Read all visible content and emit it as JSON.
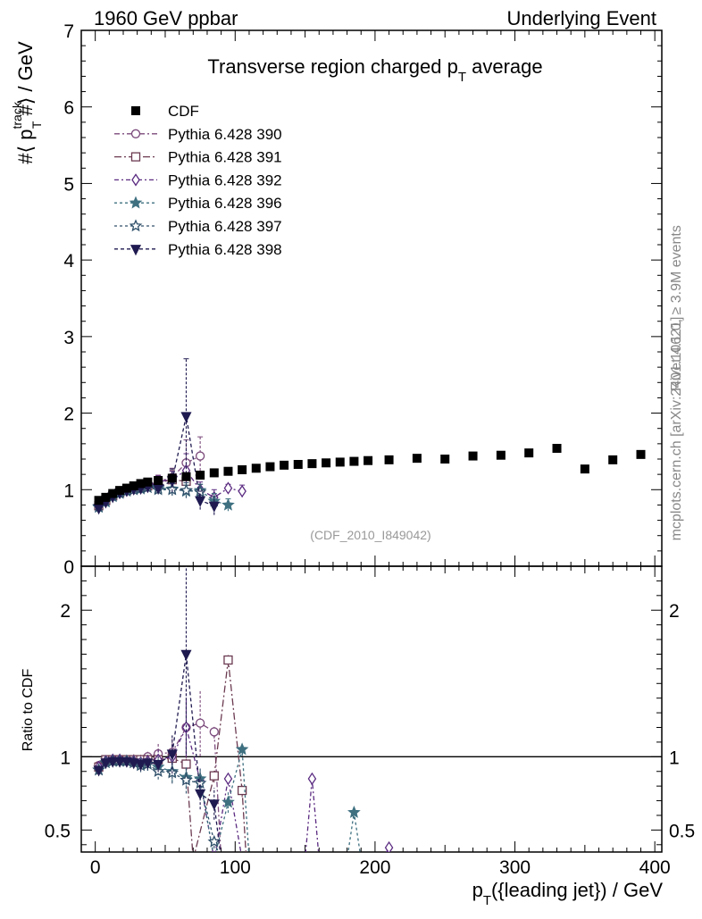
{
  "header": {
    "left": "1960 GeV ppbar",
    "right": "Underlying Event"
  },
  "side_labels": {
    "rivet": "Rivet 4.1.0, ≥ 3.9M events",
    "mcplots": "mcplots.cern.ch [arXiv:2401.10621]"
  },
  "chart_data": {
    "type": "scatter",
    "title_main": "Transverse region charged p",
    "title_sub": "T",
    "title_tail": " average",
    "analysis_label": "(CDF_2010_I849042)",
    "ylabel_parts": {
      "pre": "#⟨ p",
      "sup": "track",
      "sub": "T",
      "post": " #⟩ / GeV"
    },
    "xlabel_parts": {
      "pre": "p",
      "sub": "T",
      "post": "({leading jet}) / GeV"
    },
    "ratio_ylabel": "Ratio to CDF",
    "xlim": [
      -10,
      405
    ],
    "ylim": [
      0,
      7
    ],
    "ratio_ylim": [
      0.35,
      2.3
    ],
    "x_ticks": [
      0,
      100,
      200,
      300,
      400
    ],
    "y_ticks": [
      0,
      1,
      2,
      3,
      4,
      5,
      6,
      7
    ],
    "ratio_ticks": [
      0.5,
      1,
      2
    ],
    "ratio_tick_labels": [
      "0.5",
      "1",
      "2"
    ],
    "legend": [
      "CDF",
      "Pythia 6.428 390",
      "Pythia 6.428 391",
      "Pythia 6.428 392",
      "Pythia 6.428 396",
      "Pythia 6.428 397",
      "Pythia 6.428 398"
    ],
    "data": {
      "name": "CDF",
      "color": "#000000",
      "x": [
        2.5,
        7.5,
        12.5,
        17.5,
        22.5,
        27.5,
        32.5,
        37.5,
        45,
        55,
        65,
        75,
        85,
        95,
        105,
        115,
        125,
        135,
        145,
        155,
        165,
        175,
        185,
        195,
        210,
        230,
        250,
        270,
        290,
        310,
        330,
        350,
        370,
        390
      ],
      "y": [
        0.86,
        0.9,
        0.95,
        0.99,
        1.02,
        1.05,
        1.08,
        1.1,
        1.12,
        1.15,
        1.17,
        1.19,
        1.22,
        1.24,
        1.26,
        1.28,
        1.3,
        1.32,
        1.33,
        1.34,
        1.35,
        1.36,
        1.37,
        1.38,
        1.39,
        1.41,
        1.4,
        1.44,
        1.45,
        1.48,
        1.54,
        1.27,
        1.39,
        1.46
      ]
    },
    "series": [
      {
        "name": "Pythia 6.428 390",
        "color": "#7b4a7b",
        "marker": "circle",
        "dash": "6,3,2,3",
        "x": [
          2.5,
          7.5,
          12.5,
          17.5,
          22.5,
          27.5,
          32.5,
          37.5,
          45,
          55,
          65,
          75
        ],
        "y": [
          0.81,
          0.87,
          0.93,
          0.97,
          0.99,
          1.02,
          1.04,
          1.05,
          1.11,
          1.16,
          1.35,
          1.44
        ],
        "err": [
          0.02,
          0.02,
          0.03,
          0.03,
          0.03,
          0.04,
          0.05,
          0.05,
          0.08,
          0.12,
          0.3,
          0.25
        ],
        "ratio": [
          0.94,
          0.97,
          0.98,
          0.98,
          0.97,
          0.97,
          0.96,
          1.0,
          1.02,
          1.03,
          1.2,
          1.23,
          1.17,
          0.3
        ],
        "ratio_x": [
          2.5,
          7.5,
          12.5,
          17.5,
          22.5,
          27.5,
          32.5,
          37.5,
          45,
          55,
          65,
          75,
          85,
          90
        ]
      },
      {
        "name": "Pythia 6.428 391",
        "color": "#6b3a50",
        "marker": "square",
        "dash": "8,3,2,3",
        "x": [
          2.5,
          7.5,
          12.5,
          17.5,
          22.5,
          27.5,
          32.5,
          37.5,
          45,
          55,
          65
        ],
        "y": [
          0.79,
          0.86,
          0.92,
          0.96,
          0.99,
          1.01,
          1.03,
          1.05,
          1.09,
          1.13,
          1.11
        ],
        "err": [
          0.02,
          0.02,
          0.03,
          0.03,
          0.03,
          0.04,
          0.05,
          0.05,
          0.08,
          0.12,
          0.15
        ],
        "ratio": [
          0.93,
          0.98,
          0.98,
          0.98,
          0.98,
          0.98,
          0.98,
          0.98,
          0.98,
          0.99,
          0.95,
          0.3,
          0.87,
          1.66,
          0.77,
          0.3
        ],
        "ratio_x": [
          2.5,
          7.5,
          12.5,
          17.5,
          22.5,
          27.5,
          32.5,
          37.5,
          45,
          55,
          65,
          70,
          85,
          95,
          105,
          108
        ]
      },
      {
        "name": "Pythia 6.428 392",
        "color": "#5a2a80",
        "marker": "diamond",
        "dash": "5,3,2,3",
        "x": [
          2.5,
          7.5,
          12.5,
          17.5,
          22.5,
          27.5,
          32.5,
          37.5,
          45,
          55,
          65,
          75,
          85,
          95,
          105
        ],
        "y": [
          0.78,
          0.85,
          0.92,
          0.96,
          0.99,
          1.01,
          1.02,
          1.04,
          1.1,
          1.14,
          1.25,
          1.0,
          0.9,
          1.02,
          0.98
        ],
        "err": [
          0.02,
          0.02,
          0.03,
          0.03,
          0.03,
          0.04,
          0.05,
          0.05,
          0.08,
          0.1,
          0.22,
          0.1,
          0.1,
          0.05,
          0.08
        ],
        "ratio": [
          0.93,
          0.97,
          0.98,
          0.98,
          0.97,
          0.97,
          0.96,
          0.97,
          0.98,
          1.0,
          1.2,
          0.84,
          0.3,
          0.85,
          0.3,
          0.3,
          0.85,
          0.3,
          0.3,
          0.38,
          0.3
        ],
        "ratio_x": [
          2.5,
          7.5,
          12.5,
          17.5,
          22.5,
          27.5,
          32.5,
          37.5,
          45,
          55,
          65,
          75,
          85,
          95,
          105,
          150,
          155,
          160,
          205,
          210,
          215
        ]
      },
      {
        "name": "Pythia 6.428 396",
        "color": "#3e7080",
        "marker": "star",
        "dash": "3,3",
        "x": [
          2.5,
          7.5,
          12.5,
          17.5,
          22.5,
          27.5,
          32.5,
          37.5,
          45,
          55,
          65,
          75,
          85,
          95
        ],
        "y": [
          0.77,
          0.84,
          0.91,
          0.95,
          0.98,
          1.0,
          1.01,
          1.03,
          1.02,
          1.01,
          0.98,
          0.99,
          0.85,
          0.8
        ],
        "err": [
          0.02,
          0.02,
          0.03,
          0.03,
          0.03,
          0.04,
          0.05,
          0.05,
          0.06,
          0.08,
          0.08,
          0.08,
          0.1,
          0.08
        ],
        "ratio": [
          0.91,
          0.96,
          0.97,
          0.97,
          0.97,
          0.96,
          0.95,
          0.95,
          0.93,
          0.9,
          0.86,
          0.85,
          0.3,
          0.69,
          1.05,
          0.3,
          0.3,
          0.62,
          0.3
        ],
        "ratio_x": [
          2.5,
          7.5,
          12.5,
          17.5,
          22.5,
          27.5,
          32.5,
          37.5,
          45,
          55,
          65,
          75,
          85,
          95,
          105,
          110,
          180,
          185,
          190
        ]
      },
      {
        "name": "Pythia 6.428 397",
        "color": "#30506a",
        "marker": "star-open",
        "dash": "3,3",
        "x": [
          2.5,
          7.5,
          12.5,
          17.5,
          22.5,
          27.5,
          32.5,
          37.5,
          45,
          55,
          65,
          75
        ],
        "y": [
          0.78,
          0.85,
          0.92,
          0.96,
          0.99,
          1.0,
          1.02,
          1.03,
          1.0,
          1.0,
          0.99,
          0.97
        ],
        "err": [
          0.02,
          0.02,
          0.03,
          0.03,
          0.03,
          0.04,
          0.05,
          0.05,
          0.06,
          0.08,
          0.1,
          0.1
        ],
        "ratio": [
          0.91,
          0.96,
          0.97,
          0.97,
          0.97,
          0.96,
          0.94,
          0.95,
          0.9,
          0.89,
          0.84,
          0.82,
          0.42,
          0.3
        ],
        "ratio_x": [
          2.5,
          7.5,
          12.5,
          17.5,
          22.5,
          27.5,
          32.5,
          37.5,
          45,
          55,
          65,
          75,
          85,
          90
        ]
      },
      {
        "name": "Pythia 6.428 398",
        "color": "#1f1a50",
        "marker": "triangle-down",
        "dash": "4,3",
        "x": [
          2.5,
          7.5,
          12.5,
          17.5,
          22.5,
          27.5,
          32.5,
          37.5,
          45,
          55,
          65,
          75,
          85
        ],
        "y": [
          0.76,
          0.84,
          0.91,
          0.96,
          0.99,
          1.01,
          1.02,
          1.04,
          1.02,
          1.12,
          1.96,
          0.86,
          0.79
        ],
        "err": [
          0.02,
          0.02,
          0.03,
          0.03,
          0.03,
          0.04,
          0.05,
          0.05,
          0.06,
          0.15,
          0.75,
          0.12,
          0.12
        ],
        "ratio": [
          0.91,
          0.96,
          0.97,
          0.97,
          0.97,
          0.96,
          0.95,
          0.96,
          0.95,
          1.02,
          1.7,
          0.75,
          0.68,
          0.3
        ],
        "ratio_x": [
          2.5,
          7.5,
          12.5,
          17.5,
          22.5,
          27.5,
          32.5,
          37.5,
          45,
          55,
          65,
          75,
          85,
          90
        ]
      }
    ]
  }
}
